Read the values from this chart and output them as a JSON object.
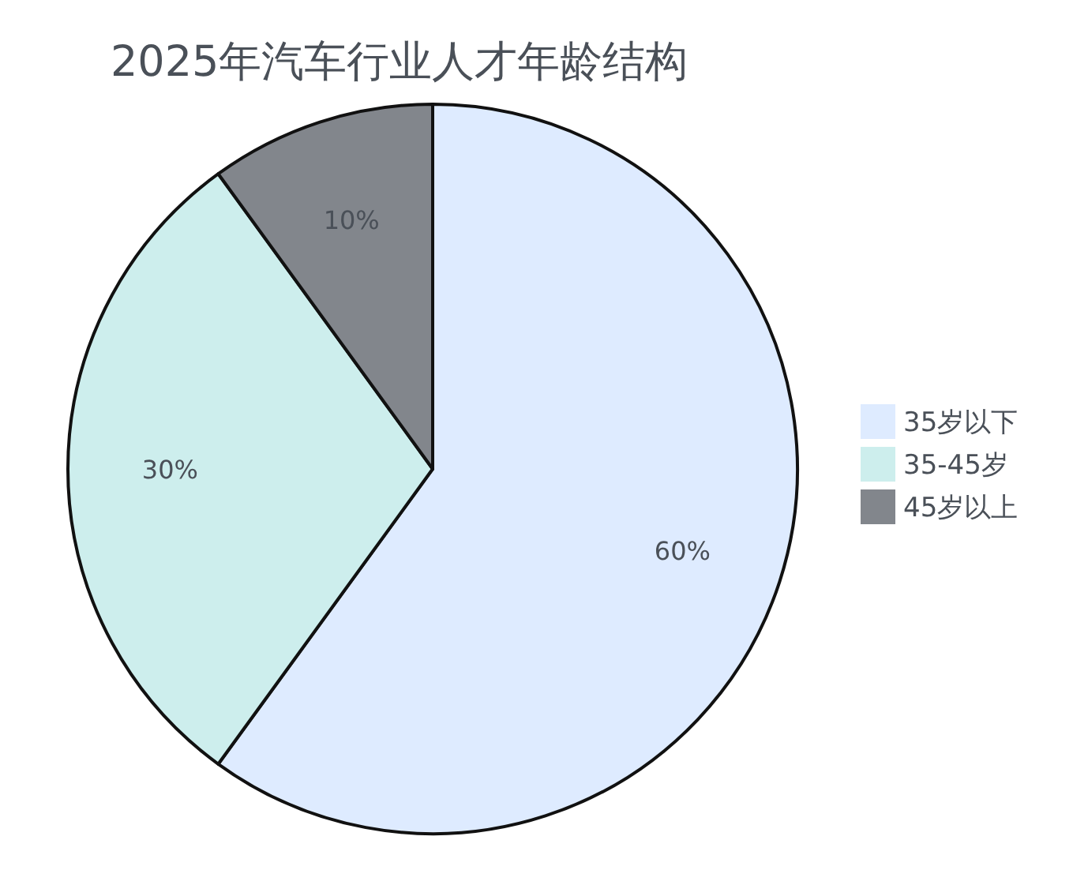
{
  "chart_data": {
    "type": "pie",
    "title": "2025年汽车行业人才年龄结构",
    "categories": [
      "35岁以下",
      "35-45岁",
      "45岁以上"
    ],
    "values": [
      60,
      30,
      10
    ],
    "colors": [
      "#deebff",
      "#cdeeed",
      "#82868c"
    ],
    "value_labels": [
      "60%",
      "30%",
      "10%"
    ],
    "legend": "right"
  }
}
